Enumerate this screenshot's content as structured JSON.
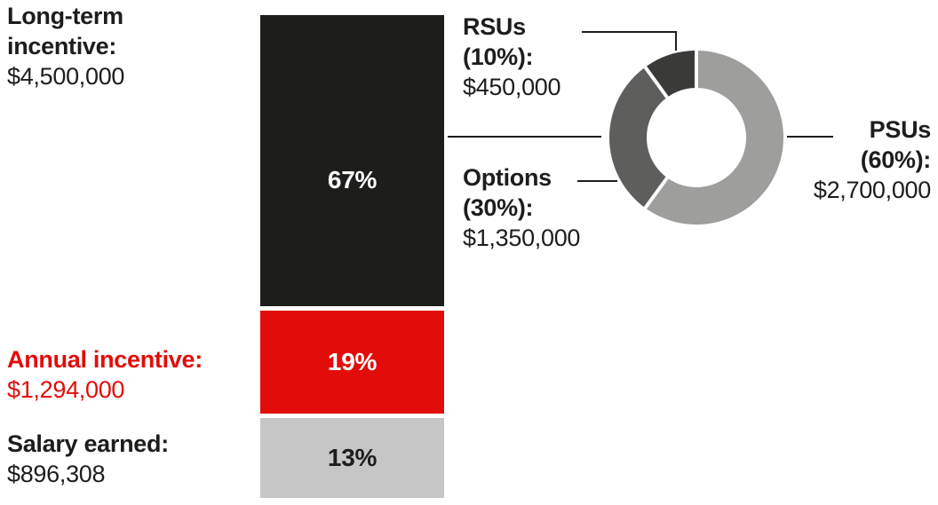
{
  "palette": {
    "ink": "#1d1d1b",
    "red": "#e20d0a",
    "bar_gray": "#c6c6c6",
    "donut_psus_gray": "#9e9e9d",
    "donut_options_gray": "#5e5e5d",
    "donut_rsus_dark": "#3a3a39",
    "white": "#ffffff"
  },
  "left_labels": {
    "long_term": {
      "line1": "Long-term",
      "line2": "incentive:",
      "amount": "$4,500,000"
    },
    "annual": {
      "title": "Annual incentive:",
      "amount": "$1,294,000"
    },
    "salary": {
      "title": "Salary earned:",
      "amount": "$896,308"
    }
  },
  "donut_labels": {
    "rsus": {
      "name": "RSUs",
      "percent": "(10%):",
      "amount": "$450,000"
    },
    "options": {
      "name": "Options",
      "percent": "(30%):",
      "amount": "$1,350,000"
    },
    "psus": {
      "name": "PSUs",
      "percent": "(60%):",
      "amount": "$2,700,000"
    }
  },
  "chart_data": [
    {
      "type": "bar",
      "subtype": "stacked-column",
      "title": "",
      "orientation": "vertical",
      "stack_order_top_to_bottom": [
        "Long-term incentive",
        "Annual incentive",
        "Salary earned"
      ],
      "segments": [
        {
          "name": "Long-term incentive",
          "amount_usd": 4500000,
          "amount_label": "$4,500,000",
          "percent": 67,
          "percent_label": "67%",
          "color": "#1d1d1b",
          "label_color": "#ffffff"
        },
        {
          "name": "Annual incentive",
          "amount_usd": 1294000,
          "amount_label": "$1,294,000",
          "percent": 19,
          "percent_label": "19%",
          "color": "#e20d0a",
          "label_color": "#ffffff"
        },
        {
          "name": "Salary earned",
          "amount_usd": 896308,
          "amount_label": "$896,308",
          "percent": 13,
          "percent_label": "13%",
          "color": "#c6c6c6",
          "label_color": "#1d1d1b"
        }
      ]
    },
    {
      "type": "pie",
      "subtype": "donut",
      "title": "",
      "breakdown_of": "Long-term incentive",
      "start_angle": "top",
      "direction": "clockwise",
      "slices": [
        {
          "name": "PSUs",
          "percent": 60,
          "amount_usd": 2700000,
          "amount_label": "$2,700,000",
          "color": "#9e9e9d"
        },
        {
          "name": "Options",
          "percent": 30,
          "amount_usd": 1350000,
          "amount_label": "$1,350,000",
          "color": "#5e5e5d"
        },
        {
          "name": "RSUs",
          "percent": 10,
          "amount_usd": 450000,
          "amount_label": "$450,000",
          "color": "#3a3a39"
        }
      ]
    }
  ]
}
